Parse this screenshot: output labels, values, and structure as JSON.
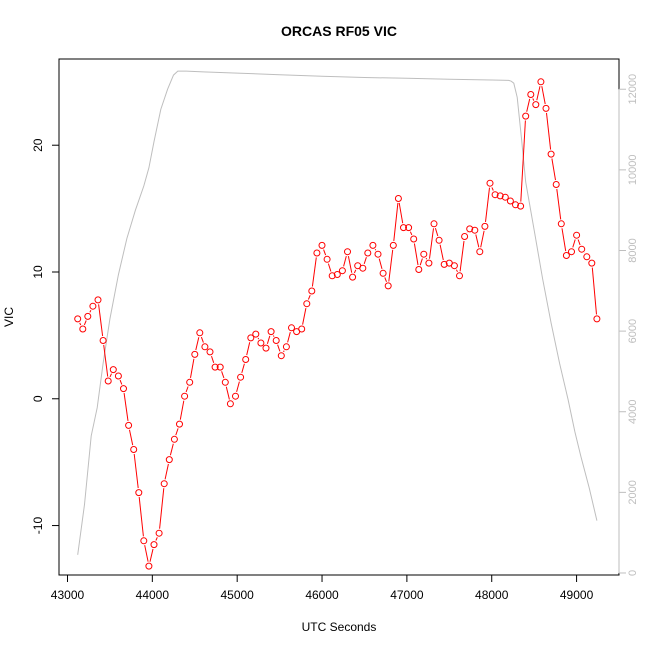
{
  "chart_data": {
    "type": "line",
    "title": "ORCAS RF05 VIC",
    "xlabel": "UTC Seconds",
    "ylabel": "VIC",
    "xlim": [
      42900,
      49500
    ],
    "ylim": [
      -13.9,
      26.8
    ],
    "y2lim": [
      -50,
      12750
    ],
    "x_ticks": [
      43000,
      44000,
      45000,
      46000,
      47000,
      48000,
      49000
    ],
    "y_ticks": [
      -10,
      0,
      10,
      20
    ],
    "y2_ticks": [
      0,
      2000,
      4000,
      6000,
      8000,
      10000,
      12000
    ],
    "colors": {
      "vic": "#ff0000",
      "altitude": "#bebebe"
    },
    "grid": false,
    "series": [
      {
        "name": "",
        "axis": "left",
        "style": "points-and-dashed-lines",
        "color": "#ff0000",
        "x": [
          43120,
          43180,
          43240,
          43300,
          43360,
          43420,
          43480,
          43540,
          43600,
          43660,
          43720,
          43780,
          43840,
          43900,
          43960,
          44020,
          44080,
          44140,
          44200,
          44260,
          44320,
          44380,
          44440,
          44500,
          44560,
          44620,
          44680,
          44740,
          44800,
          44860,
          44920,
          44980,
          45040,
          45100,
          45160,
          45220,
          45280,
          45340,
          45400,
          45460,
          45520,
          45580,
          45640,
          45700,
          45760,
          45820,
          45880,
          45940,
          46000,
          46060,
          46120,
          46180,
          46240,
          46300,
          46360,
          46420,
          46480,
          46540,
          46600,
          46660,
          46720,
          46780,
          46840,
          46900,
          46960,
          47020,
          47080,
          47140,
          47200,
          47260,
          47320,
          47380,
          47440,
          47500,
          47560,
          47620,
          47680,
          47740,
          47800,
          47860,
          47920,
          47980,
          48040,
          48100,
          48160,
          48220,
          48280,
          48340,
          48400,
          48460,
          48520,
          48580,
          48640,
          48700,
          48760,
          48820,
          48880,
          48940,
          49000,
          49060,
          49120,
          49180,
          49240
        ],
        "y": [
          6.3,
          5.5,
          6.5,
          7.3,
          7.8,
          4.6,
          1.4,
          2.3,
          1.8,
          0.8,
          -2.1,
          -4.0,
          -7.4,
          -11.2,
          -13.2,
          -11.5,
          -10.6,
          -6.7,
          -4.8,
          -3.2,
          -2.0,
          0.2,
          1.3,
          3.5,
          5.2,
          4.1,
          3.7,
          2.5,
          2.5,
          1.3,
          -0.4,
          0.2,
          1.7,
          3.1,
          4.8,
          5.1,
          4.4,
          4.0,
          5.3,
          4.6,
          3.4,
          4.1,
          5.6,
          5.3,
          5.5,
          7.5,
          8.5,
          11.5,
          12.1,
          11.0,
          9.7,
          9.8,
          10.1,
          11.6,
          9.6,
          10.5,
          10.3,
          11.5,
          12.1,
          11.4,
          9.9,
          8.9,
          12.1,
          15.8,
          13.5,
          13.5,
          12.6,
          10.2,
          11.4,
          10.7,
          13.8,
          12.5,
          10.6,
          10.7,
          10.5,
          9.7,
          12.8,
          13.4,
          13.3,
          11.6,
          13.6,
          17.0,
          16.1,
          16.0,
          15.9,
          15.6,
          15.3,
          15.2,
          22.3,
          24.0,
          23.2,
          25.0,
          22.9,
          19.3,
          16.9,
          13.8,
          11.3,
          11.6,
          12.9,
          11.8,
          11.2,
          10.7,
          6.3
        ]
      },
      {
        "name": "",
        "axis": "right",
        "style": "line",
        "color": "#bebebe",
        "x": [
          43120,
          43200,
          43280,
          43350,
          43420,
          43500,
          43600,
          43700,
          43800,
          43900,
          43960,
          44020,
          44100,
          44180,
          44250,
          44300,
          44340,
          44400,
          44600,
          45000,
          45500,
          46000,
          46500,
          47000,
          47500,
          48000,
          48200,
          48230,
          48260,
          48300,
          48350,
          48400,
          48500,
          48600,
          48700,
          48800,
          48900,
          48980,
          49050,
          49150,
          49240
        ],
        "y": [
          450,
          1700,
          3400,
          4100,
          5200,
          6300,
          7400,
          8300,
          9000,
          9600,
          10050,
          10700,
          11500,
          12000,
          12350,
          12450,
          12450,
          12450,
          12430,
          12400,
          12360,
          12320,
          12290,
          12270,
          12250,
          12230,
          12220,
          12200,
          12150,
          11800,
          10800,
          9700,
          8500,
          7300,
          6200,
          5200,
          4300,
          3500,
          2900,
          2100,
          1300
        ]
      }
    ]
  }
}
